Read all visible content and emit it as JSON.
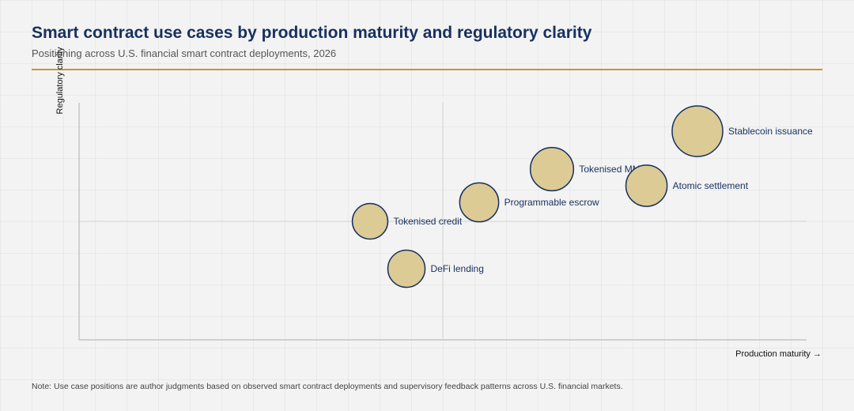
{
  "title": "Smart contract use cases by production maturity and regulatory clarity",
  "subtitle": "Positioning across U.S. financial smart contract deployments, 2026",
  "note": "Note: Use case positions are author judgments based on observed smart contract deployments and supervisory feedback patterns across U.S. financial markets.",
  "colors": {
    "accent_rule": "#c8962a",
    "bubble_fill": "#dccb94",
    "bubble_stroke": "#17305f",
    "text": "#17305f"
  },
  "chart_data": {
    "type": "scatter",
    "xlabel": "Production maturity →",
    "ylabel": "Regulatory clarity",
    "xlim": [
      0,
      10
    ],
    "ylim": [
      0,
      10
    ],
    "grid": false,
    "reference_lines": {
      "x": 5,
      "y": 5
    },
    "points": [
      {
        "label": "Stablecoin issuance",
        "x": 8.5,
        "y": 8.8,
        "size": 1.0
      },
      {
        "label": "Tokenised MMFs",
        "x": 6.5,
        "y": 7.2,
        "size": 0.55
      },
      {
        "label": "Atomic settlement",
        "x": 7.8,
        "y": 6.5,
        "size": 0.45
      },
      {
        "label": "Programmable escrow",
        "x": 5.5,
        "y": 5.8,
        "size": 0.35
      },
      {
        "label": "Tokenised credit",
        "x": 4.0,
        "y": 5.0,
        "size": 0.22
      },
      {
        "label": "DeFi lending",
        "x": 4.5,
        "y": 3.0,
        "size": 0.28
      }
    ]
  }
}
